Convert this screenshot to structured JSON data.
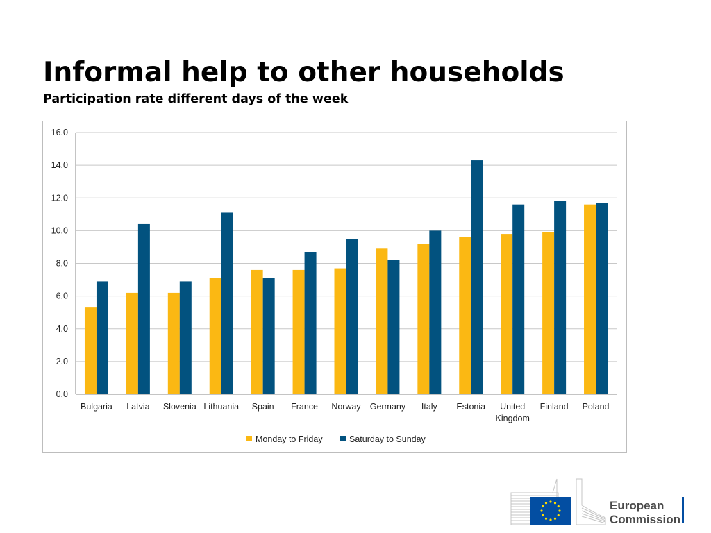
{
  "slide": {
    "title": "Informal help to other households",
    "subtitle": "Participation rate different days of the week"
  },
  "chart_data": {
    "type": "bar",
    "title": "",
    "xlabel": "",
    "ylabel": "",
    "ylim": [
      0,
      16
    ],
    "yticks": [
      "0.0",
      "2.0",
      "4.0",
      "6.0",
      "8.0",
      "10.0",
      "12.0",
      "14.0",
      "16.0"
    ],
    "grid": true,
    "legend_position": "bottom",
    "categories": [
      [
        "Bulgaria"
      ],
      [
        "Latvia"
      ],
      [
        "Slovenia"
      ],
      [
        "Lithuania"
      ],
      [
        "Spain"
      ],
      [
        "France"
      ],
      [
        "Norway"
      ],
      [
        "Germany"
      ],
      [
        "Italy"
      ],
      [
        "Estonia"
      ],
      [
        "United",
        "Kingdom"
      ],
      [
        "Finland"
      ],
      [
        "Poland"
      ]
    ],
    "series": [
      {
        "name": "Monday to Friday",
        "color": "#FBB813",
        "values": [
          5.3,
          6.2,
          6.2,
          7.1,
          7.6,
          7.6,
          7.7,
          8.9,
          9.2,
          9.6,
          9.8,
          9.9,
          11.6
        ]
      },
      {
        "name": "Saturday to Sunday",
        "color": "#02527F",
        "values": [
          6.9,
          10.4,
          6.9,
          11.1,
          7.1,
          8.7,
          9.5,
          8.2,
          10.0,
          14.3,
          11.6,
          11.8,
          11.7
        ]
      }
    ]
  },
  "logo": {
    "line1": "European",
    "line2": "Commission",
    "flag_color": "#034EA2",
    "star_color": "#FFDD00"
  }
}
